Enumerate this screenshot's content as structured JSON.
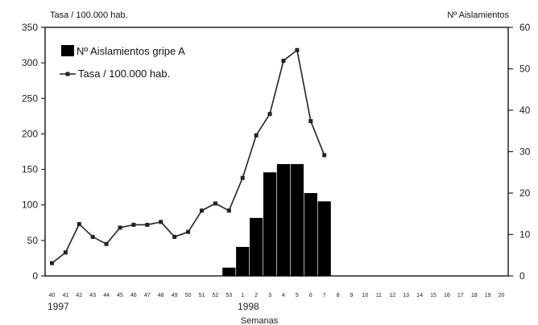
{
  "chart_data": {
    "type": "bar+line",
    "title": "",
    "y_left_label": "Tasa / 100.000 hab.",
    "y_right_label": "Nº Aislamientos",
    "xlabel": "Semanas",
    "year_labels": [
      {
        "label": "1997",
        "at_category": "40"
      },
      {
        "label": "1998",
        "at_category": "1"
      }
    ],
    "categories": [
      "40",
      "41",
      "42",
      "43",
      "44",
      "45",
      "46",
      "47",
      "48",
      "49",
      "50",
      "51",
      "52",
      "53",
      "1",
      "2",
      "3",
      "4",
      "5",
      "6",
      "7",
      "8",
      "9",
      "10",
      "11",
      "12",
      "13",
      "14",
      "15",
      "16",
      "17",
      "18",
      "19",
      "20"
    ],
    "y_left_ticks": [
      "0",
      "50",
      "100",
      "150",
      "200",
      "250",
      "300",
      "350"
    ],
    "y_right_ticks": [
      "0",
      "10",
      "20",
      "30",
      "40",
      "50",
      "60"
    ],
    "y_left_range": [
      0,
      350
    ],
    "y_right_range": [
      0,
      60
    ],
    "grid": false,
    "legend_position": "top-left",
    "series": [
      {
        "name": "Nº Aislamientos gripe A",
        "type": "bar",
        "axis": "right",
        "color": "#000000",
        "values": [
          0,
          0,
          0,
          0,
          0,
          0,
          0,
          0,
          0,
          0,
          0,
          0,
          0,
          2,
          7,
          14,
          25,
          27,
          27,
          20,
          18,
          0,
          0,
          0,
          0,
          0,
          0,
          0,
          0,
          0,
          0,
          0,
          0,
          0
        ]
      },
      {
        "name": "Tasa / 100.000 hab.",
        "type": "line",
        "axis": "left",
        "color": "#222222",
        "values": [
          18,
          33,
          73,
          55,
          45,
          68,
          72,
          72,
          76,
          55,
          62,
          92,
          102,
          92,
          138,
          198,
          228,
          303,
          318,
          218,
          170,
          null,
          null,
          null,
          null,
          null,
          null,
          null,
          null,
          null,
          null,
          null,
          null,
          null
        ]
      }
    ]
  }
}
